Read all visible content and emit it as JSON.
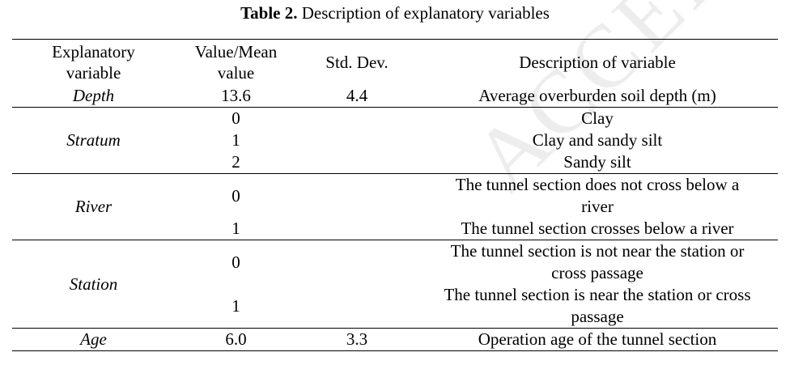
{
  "caption": {
    "label": "Table 2.",
    "text": " Description of explanatory variables"
  },
  "watermark": "ACCEPTED",
  "table": {
    "headers": {
      "col1": "Explanatory variable",
      "col1_line1": "Explanatory",
      "col1_line2": "variable",
      "col2_line1": "Value/Mean",
      "col2_line2": "value",
      "col3": "Std. Dev.",
      "col4": "Description of variable"
    },
    "depth": {
      "name": "Depth",
      "value": "13.6",
      "std": "4.4",
      "desc": "Average overburden soil depth (m)"
    },
    "stratum": {
      "name": "Stratum",
      "rows": [
        {
          "value": "0",
          "desc": "Clay"
        },
        {
          "value": "1",
          "desc": "Clay and sandy silt"
        },
        {
          "value": "2",
          "desc": "Sandy silt"
        }
      ]
    },
    "river": {
      "name": "River",
      "rows": [
        {
          "value": "0",
          "desc_line1": "The tunnel section does not cross below a",
          "desc_line2": "river"
        },
        {
          "value": "1",
          "desc": "The tunnel section crosses below a river"
        }
      ]
    },
    "station": {
      "name": "Station",
      "rows": [
        {
          "value": "0",
          "desc_line1": "The tunnel section is not near the station or",
          "desc_line2": "cross passage"
        },
        {
          "value": "1",
          "desc_line1": "The tunnel section is near the station or cross",
          "desc_line2": "passage"
        }
      ]
    },
    "age": {
      "name": "Age",
      "value": "6.0",
      "std": "3.3",
      "desc": "Operation age of the tunnel section"
    }
  }
}
